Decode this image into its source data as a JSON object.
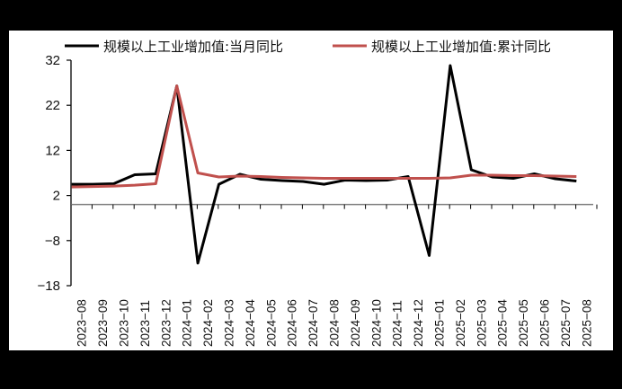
{
  "chart_data": {
    "type": "line",
    "title": "",
    "xlabel": "",
    "ylabel": "",
    "ylim": [
      -18,
      32
    ],
    "yticks": [
      -18,
      -8,
      2,
      12,
      22,
      32
    ],
    "ytick_labels": [
      "−18",
      "−8",
      "2",
      "12",
      "22",
      "32"
    ],
    "grid": false,
    "legend_position": "top",
    "categories": [
      "2023-08",
      "2023-09",
      "2023-10",
      "2023-11",
      "2023-12",
      "2024-01",
      "2024-02",
      "2024-03",
      "2024-04",
      "2024-05",
      "2024-06",
      "2024-07",
      "2024-08",
      "2024-09",
      "2024-10",
      "2024-11",
      "2024-12",
      "2025-01",
      "2025-02",
      "2025-03",
      "2025-04",
      "2025-05",
      "2025-06",
      "2025-07",
      "2025-08"
    ],
    "x_tick_labels": [
      "2023−08",
      "2023−09",
      "2023−10",
      "2023−11",
      "2023−12",
      "2024−01",
      "2024−02",
      "2024−03",
      "2024−04",
      "2024−05",
      "2024−06",
      "2024−07",
      "2024−08",
      "2024−09",
      "2024−10",
      "2024−11",
      "2024−12",
      "2025−01",
      "2025−02",
      "2025−03",
      "2025−04",
      "2025−05",
      "2025−06",
      "2025−07",
      "2025−08"
    ],
    "series": [
      {
        "name": "规模以上工业增加值:当月同比",
        "color": "#000000",
        "values": [
          4.5,
          4.5,
          4.6,
          6.6,
          6.8,
          26.3,
          -13.0,
          4.5,
          6.7,
          5.6,
          5.3,
          5.1,
          4.5,
          5.4,
          5.3,
          5.4,
          6.2,
          -11.3,
          30.8,
          7.7,
          6.1,
          5.8,
          6.8,
          5.7,
          5.2
        ]
      },
      {
        "name": "规模以上工业增加值:累计同比",
        "color": "#c0504d",
        "values": [
          3.9,
          4.0,
          4.1,
          4.3,
          4.6,
          26.3,
          7.0,
          6.1,
          6.3,
          6.2,
          6.0,
          5.9,
          5.8,
          5.8,
          5.8,
          5.8,
          5.8,
          5.8,
          5.9,
          6.5,
          6.5,
          6.4,
          6.4,
          6.3,
          6.2
        ]
      }
    ]
  }
}
